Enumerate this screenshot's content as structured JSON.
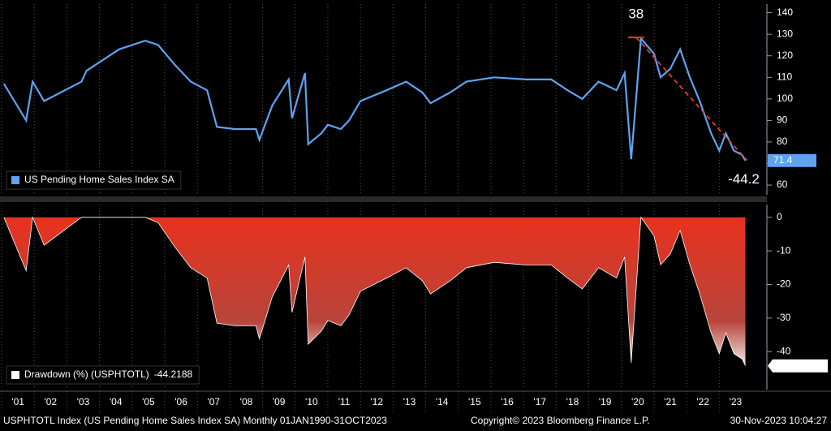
{
  "chart_data": [
    {
      "type": "line",
      "x": [
        2001.07,
        2001.75,
        2001.95,
        2002.3,
        2003.45,
        2003.6,
        2004.3,
        2004.6,
        2005.4,
        2005.8,
        2006.3,
        2006.8,
        2007.3,
        2007.6,
        2008.15,
        2008.8,
        2008.9,
        2009.3,
        2009.8,
        2009.9,
        2010.3,
        2010.4,
        2010.8,
        2011.0,
        2011.4,
        2011.65,
        2012.0,
        2012.8,
        2013.4,
        2013.9,
        2014.15,
        2014.75,
        2015.25,
        2016.1,
        2017.1,
        2017.85,
        2018.35,
        2018.8,
        2019.3,
        2019.85,
        2020.1,
        2020.3,
        2020.6,
        2021.0,
        2021.2,
        2021.5,
        2021.8,
        2022.1,
        2022.4,
        2022.75,
        2023.0,
        2023.2,
        2023.45,
        2023.7,
        2023.8
      ],
      "series": [
        {
          "name": "US Pending Home Sales Index SA",
          "color": "#5ea3f0",
          "values": [
            107,
            90,
            108,
            99,
            108,
            113,
            120,
            123,
            127,
            125,
            116,
            108,
            104,
            87,
            86,
            86,
            81,
            97,
            109,
            91,
            112,
            79,
            84,
            88,
            86,
            90,
            99,
            104,
            108,
            103,
            98,
            103,
            108,
            110,
            109,
            109,
            104,
            100,
            108,
            104,
            112,
            72,
            128,
            121,
            110,
            114,
            123,
            110,
            99,
            84,
            76,
            84,
            76,
            74,
            71.4
          ]
        }
      ],
      "xlim": [
        2000.95,
        2024.46
      ],
      "ylim": [
        55.5,
        144
      ],
      "yticks": [
        60,
        70,
        80,
        90,
        100,
        110,
        120,
        130,
        140
      ],
      "legend": "lower left",
      "trendline": {
        "x": [
          2020.45,
          2023.85
        ],
        "y": [
          128.5,
          71.5
        ],
        "color": "#e03c31",
        "labels": [
          "38",
          "-44.2"
        ]
      }
    },
    {
      "type": "area",
      "x": [
        2001.07,
        2001.75,
        2001.95,
        2002.3,
        2003.45,
        2003.6,
        2004.3,
        2004.6,
        2005.4,
        2005.8,
        2006.3,
        2006.8,
        2007.3,
        2007.6,
        2008.15,
        2008.8,
        2008.9,
        2009.3,
        2009.8,
        2009.9,
        2010.3,
        2010.4,
        2010.8,
        2011.0,
        2011.4,
        2011.65,
        2012.0,
        2012.8,
        2013.4,
        2013.9,
        2014.15,
        2014.75,
        2015.25,
        2016.1,
        2017.1,
        2017.85,
        2018.35,
        2018.8,
        2019.3,
        2019.85,
        2020.1,
        2020.3,
        2020.6,
        2021.0,
        2021.2,
        2021.5,
        2021.8,
        2022.1,
        2022.4,
        2022.75,
        2023.0,
        2023.2,
        2023.45,
        2023.7,
        2023.8
      ],
      "series": [
        {
          "name": "Drawdown (%) (USPHTOTL)",
          "color": "#e8321e",
          "values": [
            0,
            -15.9,
            0,
            -8.3,
            0,
            0,
            0,
            0,
            0,
            -1.6,
            -8.7,
            -15.0,
            -18.1,
            -31.5,
            -32.3,
            -32.3,
            -36.2,
            -23.6,
            -14.2,
            -28.3,
            -11.8,
            -37.8,
            -33.9,
            -30.7,
            -32.3,
            -29.1,
            -22.0,
            -18.1,
            -15.0,
            -18.9,
            -22.8,
            -18.9,
            -15.0,
            -13.4,
            -14.2,
            -14.2,
            -18.1,
            -21.3,
            -15.0,
            -18.1,
            -11.8,
            -43.3,
            0,
            -5.5,
            -14.1,
            -10.9,
            -3.9,
            -14.1,
            -22.7,
            -34.4,
            -40.6,
            -34.4,
            -40.6,
            -42.2,
            -44.2188
          ]
        }
      ],
      "xlim": [
        2000.95,
        2024.46
      ],
      "ylim": [
        -51.3,
        3.8
      ],
      "yticks": [
        0,
        -10,
        -20,
        -30,
        -40
      ],
      "xticks": [
        {
          "value": 2001,
          "label": "'01"
        },
        {
          "value": 2002,
          "label": "'02"
        },
        {
          "value": 2003,
          "label": "'03"
        },
        {
          "value": 2004,
          "label": "'04"
        },
        {
          "value": 2005,
          "label": "'05"
        },
        {
          "value": 2006,
          "label": "'06"
        },
        {
          "value": 2007,
          "label": "'07"
        },
        {
          "value": 2008,
          "label": "'08"
        },
        {
          "value": 2009,
          "label": "'09"
        },
        {
          "value": 2010,
          "label": "'10"
        },
        {
          "value": 2011,
          "label": "'11"
        },
        {
          "value": 2012,
          "label": "'12"
        },
        {
          "value": 2013,
          "label": "'13"
        },
        {
          "value": 2014,
          "label": "'14"
        },
        {
          "value": 2015,
          "label": "'15"
        },
        {
          "value": 2016,
          "label": "'16"
        },
        {
          "value": 2017,
          "label": "'17"
        },
        {
          "value": 2018,
          "label": "'18"
        },
        {
          "value": 2019,
          "label": "'19"
        },
        {
          "value": 2020,
          "label": "'20"
        },
        {
          "value": 2021,
          "label": "'21"
        },
        {
          "value": 2022,
          "label": "'22"
        },
        {
          "value": 2023,
          "label": "'23"
        }
      ],
      "grid": true,
      "legend": "lower left"
    }
  ],
  "footer": {
    "left": "USPHTOTL Index (US Pending Home Sales Index SA)  Monthly 01JAN1990-31OCT2023",
    "middle": "Copyright© 2023 Bloomberg Finance L.P.",
    "right": "30-Nov-2023 10:04:27"
  }
}
